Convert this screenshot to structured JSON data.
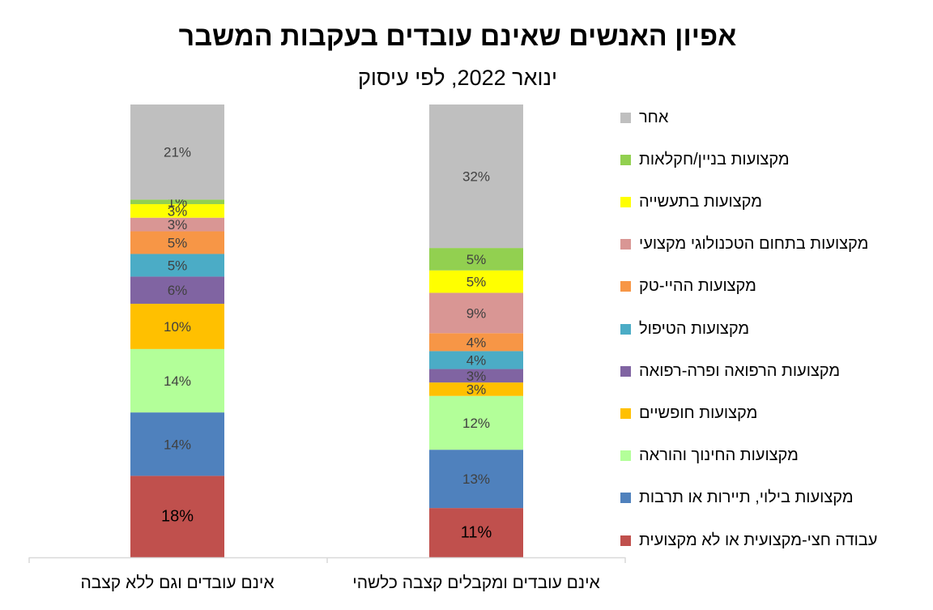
{
  "chart_data": {
    "type": "bar",
    "stacked": true,
    "title": "אפיון האנשים שאינם עובדים בעקבות המשבר",
    "subtitle": "ינואר 2022, לפי עיסוק",
    "categories": [
      "אינם עובדים ומקבלים קצבה כלשהי",
      "אינם עובדים וגם ללא קצבה"
    ],
    "legend_position": "right",
    "series": [
      {
        "name": "עבודה חצי-מקצועית או לא מקצועית",
        "color": "#c0504d",
        "values": [
          11,
          18
        ],
        "labels": [
          "11%",
          "18%"
        ]
      },
      {
        "name": "מקצועות בילוי, תיירות או תרבות",
        "color": "#4f81bd",
        "values": [
          13,
          14
        ],
        "labels": [
          "13%",
          "14%"
        ]
      },
      {
        "name": "מקצועות החינוך והוראה",
        "color": "#b3ff99",
        "values": [
          12,
          14
        ],
        "labels": [
          "12%",
          "14%"
        ]
      },
      {
        "name": "מקצועות חופשיים",
        "color": "#ffc000",
        "values": [
          3,
          10
        ],
        "labels": [
          "3%",
          "10%"
        ]
      },
      {
        "name": "מקצועות הרפואה ופרה-רפואה",
        "color": "#8064a2",
        "values": [
          3,
          6
        ],
        "labels": [
          "3%",
          "6%"
        ]
      },
      {
        "name": "מקצועות הטיפול",
        "color": "#4bacc6",
        "values": [
          4,
          5
        ],
        "labels": [
          "4%",
          "5%"
        ]
      },
      {
        "name": "מקצועות ההיי-טק",
        "color": "#f79646",
        "values": [
          4,
          5
        ],
        "labels": [
          "4%",
          "5%"
        ]
      },
      {
        "name": "מקצועות בתחום הטכנולוגי מקצועי",
        "color": "#d99694",
        "values": [
          9,
          3
        ],
        "labels": [
          "9%",
          "3%"
        ]
      },
      {
        "name": "מקצועות בתעשייה",
        "color": "#ffff00",
        "values": [
          5,
          3
        ],
        "labels": [
          "5%",
          "3%"
        ]
      },
      {
        "name": "מקצועות בניין/חקלאות",
        "color": "#92d050",
        "values": [
          5,
          1
        ],
        "labels": [
          "5%",
          "1%"
        ]
      },
      {
        "name": "אחר",
        "color": "#bfbfbf",
        "values": [
          32,
          21
        ],
        "labels": [
          "32%",
          "21%"
        ]
      }
    ]
  }
}
